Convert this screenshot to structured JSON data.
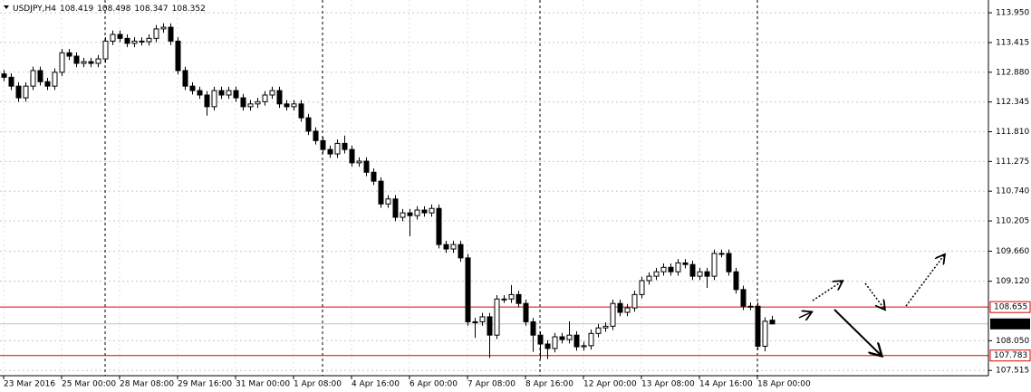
{
  "chart_data": {
    "type": "candlestick",
    "symbol": "USDJPY,H4",
    "categories": [
      "23 Mar 2016",
      null,
      null,
      null,
      null,
      null,
      null,
      null,
      "25 Mar 00:00",
      null,
      null,
      null,
      null,
      null,
      null,
      null,
      "28 Mar 08:00",
      null,
      null,
      null,
      null,
      null,
      null,
      null,
      "29 Mar 16:00",
      null,
      null,
      null,
      null,
      null,
      null,
      null,
      "31 Mar 00:00",
      null,
      null,
      null,
      null,
      null,
      null,
      null,
      "1 Apr 08:00",
      null,
      null,
      null,
      null,
      null,
      null,
      null,
      "4 Apr 16:00",
      null,
      null,
      null,
      null,
      null,
      null,
      null,
      "6 Apr 00:00",
      null,
      null,
      null,
      null,
      null,
      null,
      null,
      "7 Apr 08:00",
      null,
      null,
      null,
      null,
      null,
      null,
      null,
      "8 Apr 16:00",
      null,
      null,
      null,
      null,
      null,
      null,
      null,
      "12 Apr 00:00",
      null,
      null,
      null,
      null,
      null,
      null,
      null,
      "13 Apr 08:00",
      null,
      null,
      null,
      null,
      null,
      null,
      null,
      "14 Apr 16:00",
      null,
      null,
      null,
      null,
      null,
      null,
      null,
      "18 Apr 00:00",
      null,
      null
    ],
    "open": [
      112.85,
      112.79,
      112.63,
      112.42,
      112.63,
      112.91,
      112.71,
      112.63,
      112.88,
      113.23,
      113.17,
      113.04,
      113.07,
      113.04,
      113.12,
      113.44,
      113.56,
      113.49,
      113.4,
      113.44,
      113.43,
      113.49,
      113.66,
      113.69,
      113.44,
      112.91,
      112.63,
      112.55,
      112.47,
      112.26,
      112.55,
      112.47,
      112.55,
      112.42,
      112.26,
      112.31,
      112.35,
      112.47,
      112.55,
      112.31,
      112.26,
      112.31,
      112.06,
      111.82,
      111.65,
      111.49,
      111.41,
      111.6,
      111.49,
      111.25,
      111.28,
      111.08,
      110.92,
      110.51,
      110.6,
      110.27,
      110.35,
      110.3,
      110.4,
      110.35,
      110.43,
      109.78,
      109.7,
      109.78,
      109.54,
      108.39,
      108.39,
      108.48,
      108.15,
      108.8,
      108.8,
      108.88,
      108.72,
      108.39,
      108.15,
      107.99,
      107.91,
      108.12,
      108.07,
      108.15,
      107.94,
      107.96,
      108.18,
      108.28,
      108.31,
      108.72,
      108.56,
      108.64,
      108.88,
      109.13,
      109.21,
      109.29,
      109.37,
      109.29,
      109.45,
      109.42,
      109.21,
      109.29,
      109.21,
      109.62,
      109.62,
      109.29,
      108.97,
      108.67,
      108.67,
      107.95,
      108.419
    ],
    "high": [
      112.92,
      112.86,
      112.7,
      112.7,
      112.98,
      112.98,
      112.78,
      112.95,
      113.3,
      113.3,
      113.24,
      113.14,
      113.14,
      113.19,
      113.51,
      113.63,
      113.63,
      113.56,
      113.51,
      113.51,
      113.56,
      113.73,
      113.76,
      113.76,
      113.51,
      112.98,
      112.7,
      112.62,
      112.54,
      112.62,
      112.62,
      112.62,
      112.62,
      112.49,
      112.38,
      112.42,
      112.54,
      112.62,
      112.62,
      112.38,
      112.38,
      112.38,
      112.13,
      111.89,
      111.72,
      111.56,
      111.67,
      111.74,
      111.56,
      111.35,
      111.35,
      111.15,
      110.99,
      110.67,
      110.67,
      110.42,
      110.42,
      110.47,
      110.47,
      110.5,
      110.5,
      109.85,
      109.85,
      109.85,
      109.61,
      108.46,
      108.55,
      108.55,
      108.87,
      108.87,
      109.05,
      108.95,
      108.79,
      108.46,
      108.22,
      108.06,
      108.19,
      108.19,
      108.4,
      108.22,
      108.03,
      108.25,
      108.35,
      108.38,
      108.79,
      108.79,
      108.71,
      108.95,
      109.2,
      109.28,
      109.36,
      109.44,
      109.44,
      109.52,
      109.52,
      109.49,
      109.36,
      109.36,
      109.69,
      109.69,
      109.69,
      109.36,
      109.04,
      108.74,
      108.74,
      108.47,
      108.498
    ],
    "low": [
      112.72,
      112.56,
      112.35,
      112.35,
      112.56,
      112.64,
      112.56,
      112.56,
      112.81,
      113.1,
      112.97,
      112.97,
      112.97,
      112.97,
      113.05,
      113.37,
      113.42,
      113.33,
      113.33,
      113.36,
      113.36,
      113.42,
      113.59,
      113.37,
      112.84,
      112.56,
      112.48,
      112.4,
      112.1,
      112.19,
      112.4,
      112.4,
      112.35,
      112.19,
      112.19,
      112.24,
      112.28,
      112.4,
      112.24,
      112.19,
      112.19,
      111.99,
      111.75,
      111.58,
      111.42,
      111.34,
      111.34,
      111.42,
      111.18,
      111.18,
      111.01,
      110.85,
      110.44,
      110.44,
      110.2,
      110.2,
      109.93,
      110.23,
      110.28,
      110.28,
      109.71,
      109.63,
      109.63,
      109.47,
      108.32,
      108.1,
      108.32,
      107.74,
      108.08,
      108.73,
      108.73,
      108.65,
      108.32,
      107.85,
      107.72,
      107.72,
      107.84,
      108.0,
      108.0,
      107.87,
      107.87,
      107.89,
      108.11,
      108.21,
      108.24,
      108.49,
      108.49,
      108.57,
      108.81,
      109.06,
      109.14,
      109.22,
      109.22,
      109.22,
      109.35,
      109.14,
      109.14,
      109.0,
      109.14,
      109.55,
      109.22,
      108.9,
      108.6,
      108.6,
      107.88,
      107.86,
      108.347
    ],
    "close": [
      112.79,
      112.63,
      112.42,
      112.63,
      112.91,
      112.71,
      112.63,
      112.88,
      113.23,
      113.17,
      113.04,
      113.07,
      113.04,
      113.12,
      113.44,
      113.56,
      113.49,
      113.4,
      113.44,
      113.43,
      113.49,
      113.66,
      113.69,
      113.44,
      112.91,
      112.63,
      112.55,
      112.47,
      112.26,
      112.55,
      112.47,
      112.55,
      112.42,
      112.26,
      112.31,
      112.35,
      112.47,
      112.55,
      112.31,
      112.26,
      112.31,
      112.06,
      111.82,
      111.65,
      111.49,
      111.41,
      111.6,
      111.49,
      111.25,
      111.28,
      111.08,
      110.92,
      110.51,
      110.6,
      110.27,
      110.35,
      110.3,
      110.4,
      110.35,
      110.43,
      109.78,
      109.7,
      109.78,
      109.54,
      108.39,
      108.39,
      108.48,
      108.15,
      108.8,
      108.8,
      108.88,
      108.72,
      108.39,
      108.15,
      107.99,
      107.91,
      108.12,
      108.07,
      108.15,
      107.94,
      107.96,
      108.18,
      108.28,
      108.31,
      108.72,
      108.56,
      108.64,
      108.88,
      109.13,
      109.21,
      109.29,
      109.37,
      109.29,
      109.45,
      109.42,
      109.21,
      109.29,
      109.21,
      109.62,
      109.62,
      109.29,
      108.97,
      108.67,
      108.67,
      107.95,
      108.4,
      108.352
    ],
    "ylim": [
      107.42,
      114.18
    ],
    "yticks": [
      {
        "value": 113.95,
        "label": "113.950"
      },
      113.415,
      {
        "value": 112.88,
        "label": "112.880"
      },
      112.345,
      {
        "value": 111.81,
        "label": "111.810"
      },
      111.275,
      {
        "value": 110.74,
        "label": "110.740"
      },
      110.205,
      {
        "value": 109.66,
        "label": "109.660"
      },
      {
        "value": 109.12,
        "label": "109.120"
      },
      {
        "value": 108.05,
        "label": "108.050"
      },
      107.515
    ],
    "levels": [
      {
        "value": 108.655,
        "color": "#e00000"
      },
      {
        "value": 107.783,
        "color": "#e00000"
      }
    ],
    "grid": true,
    "bull_color": "#ffffff",
    "bear_color": "#000000"
  }
}
